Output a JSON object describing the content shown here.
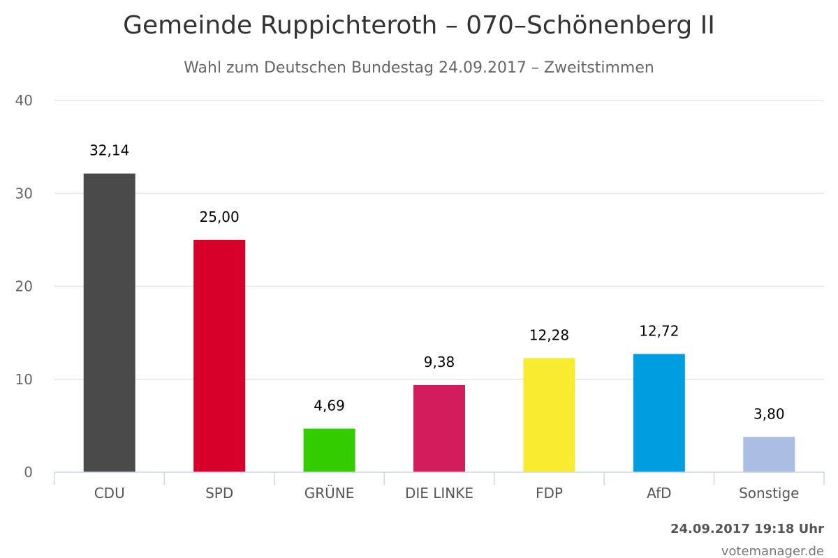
{
  "chart_data": {
    "type": "bar",
    "title": "Gemeinde Ruppichteroth – 070–Schönenberg II",
    "subtitle": "Wahl zum Deutschen Bundestag 24.09.2017 – Zweitstimmen",
    "categories": [
      "CDU",
      "SPD",
      "GRÜNE",
      "DIE LINKE",
      "FDP",
      "AfD",
      "Sonstige"
    ],
    "values": [
      32.14,
      25.0,
      4.69,
      9.38,
      12.28,
      12.72,
      3.8
    ],
    "value_labels": [
      "32,14",
      "25,00",
      "4,69",
      "9,38",
      "12,28",
      "12,72",
      "3,80"
    ],
    "colors": [
      "#4a4a4a",
      "#d6002b",
      "#33cc00",
      "#d21c5b",
      "#f9ec30",
      "#009ee0",
      "#abbde3"
    ],
    "ylim": [
      0,
      40
    ],
    "yticks": [
      0,
      10,
      20,
      30,
      40
    ],
    "grid": true,
    "legend": "none"
  },
  "footer": {
    "timestamp": "24.09.2017 19:18 Uhr",
    "credit": "votemanager.de"
  }
}
